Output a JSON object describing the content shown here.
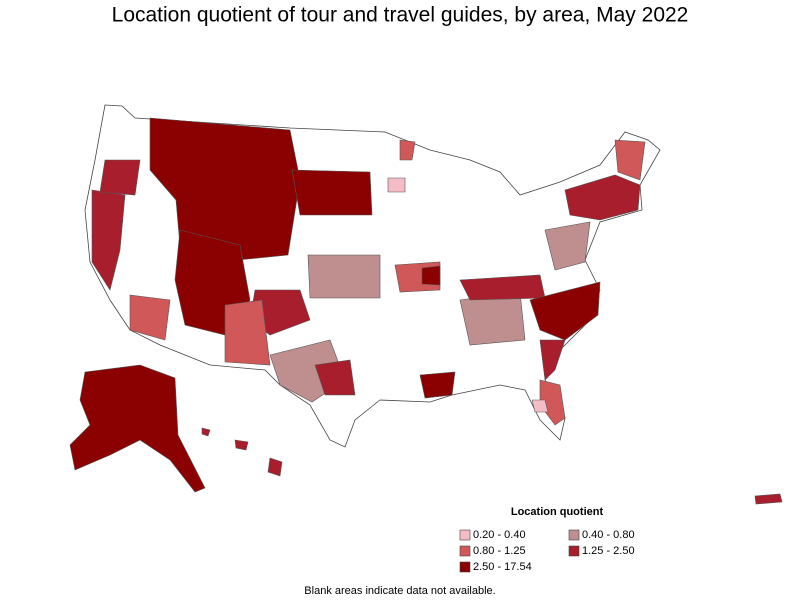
{
  "title": "Location quotient of tour and travel guides, by area, May 2022",
  "legend": {
    "title": "Location quotient",
    "items": [
      {
        "label": "0.20 - 0.40",
        "color": "#f6bcc6"
      },
      {
        "label": "0.40 - 0.80",
        "color": "#bf8f8f"
      },
      {
        "label": "0.80 - 1.25",
        "color": "#d05858"
      },
      {
        "label": "1.25 - 2.50",
        "color": "#a81e2c"
      },
      {
        "label": "2.50 - 17.54",
        "color": "#8b0000"
      }
    ]
  },
  "note": "Blank areas indicate data not available."
}
